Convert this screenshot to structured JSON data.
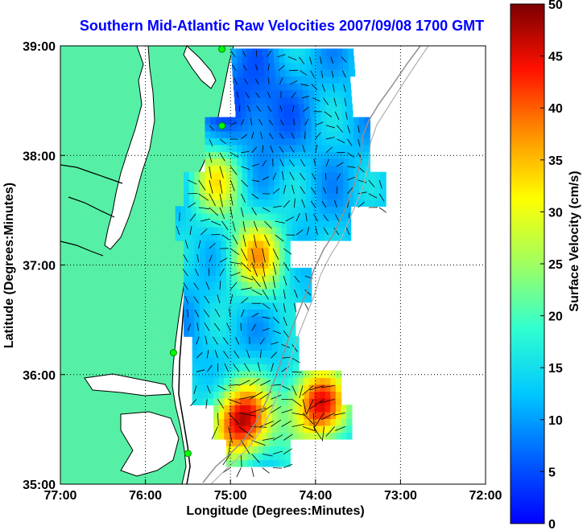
{
  "title": "Southern Mid-Atlantic Raw Velocities 2007/09/08 1700 GMT",
  "xaxis": {
    "label": "Longitude (Degrees:Minutes)",
    "ticks": [
      {
        "lon": -77,
        "label": "77:00"
      },
      {
        "lon": -76,
        "label": "76:00"
      },
      {
        "lon": -75,
        "label": "75:00"
      },
      {
        "lon": -74,
        "label": "74:00"
      },
      {
        "lon": -73,
        "label": "73:00"
      },
      {
        "lon": -72,
        "label": "72:00"
      }
    ]
  },
  "yaxis": {
    "label": "Latitude (Degrees:Minutes)",
    "ticks": [
      {
        "lat": 35,
        "label": "35:00"
      },
      {
        "lat": 36,
        "label": "36:00"
      },
      {
        "lat": 37,
        "label": "37:00"
      },
      {
        "lat": 38,
        "label": "38:00"
      },
      {
        "lat": 39,
        "label": "39:00"
      }
    ]
  },
  "colorbar": {
    "label": "Surface Velocity (cm/s)",
    "min": 0,
    "max": 50,
    "ticks": [
      "0",
      "5",
      "10",
      "15",
      "20",
      "25",
      "30",
      "35",
      "40",
      "45",
      "50"
    ]
  },
  "extent": {
    "lon_min": -77,
    "lon_max": -72,
    "lat_min": 35,
    "lat_max": 39
  },
  "colors": {
    "land": "#55f0a5",
    "coast": "#000000",
    "bathymetry": "#909090",
    "station": "#00ff00",
    "title": "#0000ff"
  },
  "stations": [
    {
      "lon": -75.1,
      "lat": 38.97
    },
    {
      "lon": -75.1,
      "lat": 38.27
    },
    {
      "lon": -75.67,
      "lat": 36.2
    },
    {
      "lon": -75.5,
      "lat": 35.28
    }
  ]
}
